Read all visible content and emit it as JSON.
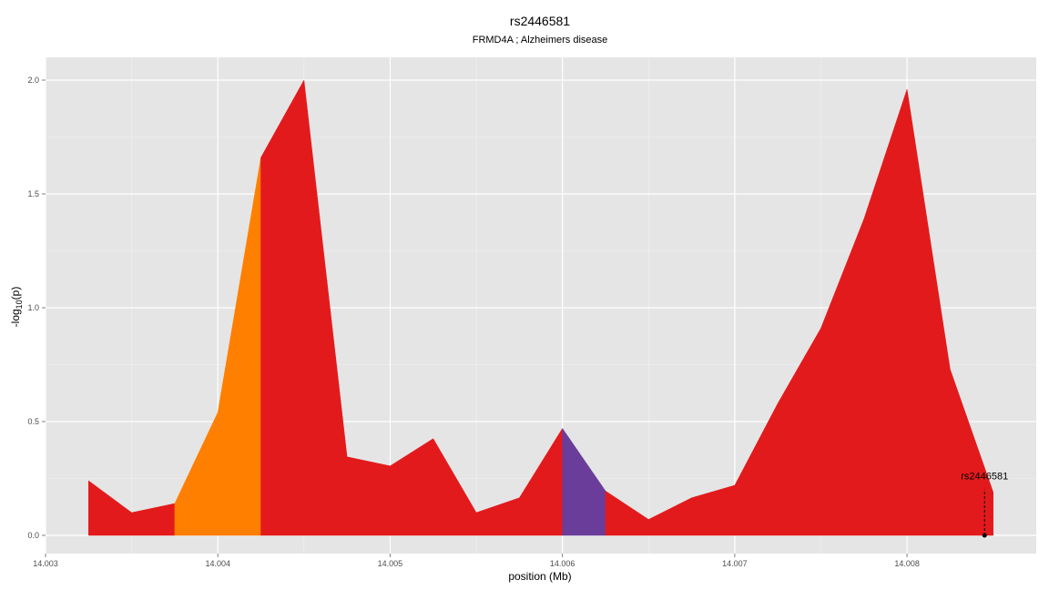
{
  "chart_data": {
    "type": "area",
    "title": "rs2446581",
    "subtitle": "FRMD4A ; Alzheimers disease",
    "xlabel": "position (Mb)",
    "ylabel_main": "-log",
    "ylabel_sub": "10",
    "ylabel_rest": "(p)",
    "xlim": [
      14.003,
      14.00875
    ],
    "ylim": [
      -0.08,
      2.1
    ],
    "x_ticks": [
      14.003,
      14.004,
      14.005,
      14.006,
      14.007,
      14.008
    ],
    "x_tick_labels": [
      "14.003",
      "14.004",
      "14.005",
      "14.006",
      "14.007",
      "14.008"
    ],
    "y_ticks": [
      0.0,
      0.5,
      1.0,
      1.5,
      2.0
    ],
    "y_tick_labels": [
      "0.0",
      "0.5",
      "1.0",
      "1.5",
      "2.0"
    ],
    "grid": true,
    "legend": "none",
    "points": [
      {
        "x": 14.00325,
        "y": 0.24
      },
      {
        "x": 14.0035,
        "y": 0.1
      },
      {
        "x": 14.00375,
        "y": 0.14
      },
      {
        "x": 14.004,
        "y": 0.54
      },
      {
        "x": 14.00425,
        "y": 1.66
      },
      {
        "x": 14.0045,
        "y": 2.0
      },
      {
        "x": 14.00475,
        "y": 0.345
      },
      {
        "x": 14.005,
        "y": 0.305
      },
      {
        "x": 14.00525,
        "y": 0.425
      },
      {
        "x": 14.0055,
        "y": 0.1
      },
      {
        "x": 14.00575,
        "y": 0.165
      },
      {
        "x": 14.006,
        "y": 0.47
      },
      {
        "x": 14.00625,
        "y": 0.195
      },
      {
        "x": 14.0065,
        "y": 0.07
      },
      {
        "x": 14.00675,
        "y": 0.165
      },
      {
        "x": 14.007,
        "y": 0.22
      },
      {
        "x": 14.00725,
        "y": 0.58
      },
      {
        "x": 14.0075,
        "y": 0.91
      },
      {
        "x": 14.00775,
        "y": 1.39
      },
      {
        "x": 14.008,
        "y": 1.96
      },
      {
        "x": 14.00825,
        "y": 0.73
      },
      {
        "x": 14.0085,
        "y": 0.19
      }
    ],
    "segments": [
      {
        "x_start": 14.00325,
        "x_end": 14.00375,
        "color": "#e31a1c"
      },
      {
        "x_start": 14.00375,
        "x_end": 14.00425,
        "color": "#ff7f00"
      },
      {
        "x_start": 14.00425,
        "x_end": 14.006,
        "color": "#e31a1c"
      },
      {
        "x_start": 14.006,
        "x_end": 14.00625,
        "color": "#6a3d9a"
      },
      {
        "x_start": 14.00625,
        "x_end": 14.0085,
        "color": "#e31a1c"
      }
    ],
    "annotation": {
      "label": "rs2446581",
      "x": 14.00845,
      "y": 0.0,
      "label_y": 0.25
    }
  },
  "colors": {
    "panel_bg": "#e5e5e5",
    "grid_major": "#ffffff",
    "grid_minor": "#f2f2f2",
    "red": "#e31a1c",
    "orange": "#ff7f00",
    "purple": "#6a3d9a"
  }
}
